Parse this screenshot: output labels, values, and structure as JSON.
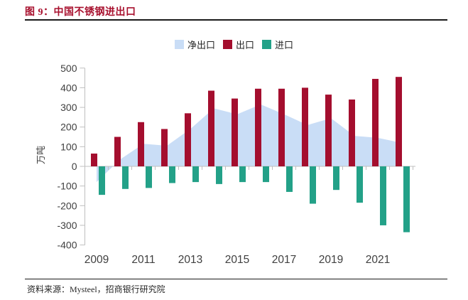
{
  "figure": {
    "title": "图 9：中国不锈钢进出口",
    "source": "资料来源：Mysteel，招商银行研究院"
  },
  "chart_data": {
    "type": "combo (area + grouped bars)",
    "title": "中国不锈钢进出口",
    "ylabel": "万吨",
    "ylim": [
      -400,
      500
    ],
    "yticks": [
      500,
      400,
      300,
      200,
      100,
      0,
      -100,
      -200,
      -300,
      -400
    ],
    "grid": "off",
    "legend_position": "top-center",
    "categories": [
      2009,
      2010,
      2011,
      2012,
      2013,
      2014,
      2015,
      2016,
      2017,
      2018,
      2019,
      2020,
      2021,
      2022
    ],
    "xtick_labels_shown": [
      "2009",
      "2011",
      "2013",
      "2015",
      "2017",
      "2019",
      "2021"
    ],
    "series": [
      {
        "name": "净出口",
        "type": "area",
        "color": "#C9DDF6",
        "values": [
          -80,
          35,
          115,
          105,
          190,
          295,
          265,
          315,
          265,
          210,
          245,
          155,
          145,
          120
        ],
        "note": "net = 出口 + 进口"
      },
      {
        "name": "出口",
        "type": "bar",
        "color": "#A40E2E",
        "values": [
          65,
          150,
          225,
          190,
          270,
          385,
          345,
          395,
          395,
          400,
          365,
          340,
          445,
          455
        ]
      },
      {
        "name": "进口",
        "type": "bar",
        "color": "#23A188",
        "values": [
          -145,
          -115,
          -110,
          -85,
          -80,
          -90,
          -80,
          -80,
          -130,
          -190,
          -120,
          -185,
          -300,
          -335
        ]
      }
    ]
  },
  "colors": {
    "title_red": "#A8112E",
    "axis_text": "#404040",
    "axis_line": "#BFBFBF",
    "rule_dark": "#1a1a1a"
  }
}
